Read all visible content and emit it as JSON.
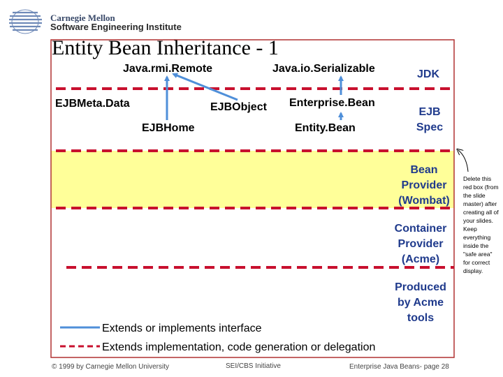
{
  "header": {
    "logo_line1": "Carnegie Mellon",
    "logo_line2": "Software Engineering Institute",
    "title": "Entity Bean Inheritance - 1"
  },
  "diagram": {
    "classes": {
      "remote": "Java.rmi.Remote",
      "serializable": "Java.io.Serializable",
      "ejb_meta_data": "EJBMeta.Data",
      "ejb_object": "EJBObject",
      "enterprise_bean": "Enterprise.Bean",
      "ejb_home": "EJBHome",
      "entity_bean": "Entity.Bean"
    },
    "layers": {
      "jdk": "JDK",
      "ejb_spec_1": "EJB",
      "ejb_spec_2": "Spec",
      "bean_provider_1": "Bean",
      "bean_provider_2": "Provider",
      "bean_provider_3": "(Wombat)",
      "container_provider_1": "Container",
      "container_provider_2": "Provider",
      "container_provider_3": "(Acme)",
      "produced_1": "Produced",
      "produced_2": "by Acme",
      "produced_3": "tools"
    },
    "colors": {
      "arrow_blue": "#4f8fd9",
      "dash_red": "#c8102e",
      "frame_red": "#b03030",
      "band_yellow": "#ffff99",
      "text_blue": "#1f3a8c"
    }
  },
  "legend": {
    "extends_interface": "Extends or implements interface",
    "extends_impl": "Extends implementation, code generation or delegation"
  },
  "side_note": "Delete this red box (from the slide master) after creating all of your slides. Keep everything inside the \"safe area\" for correct display.",
  "footer": {
    "copyright": "© 1999 by Carnegie Mellon University",
    "initiative": "SEI/CBS Initiative",
    "page": "Enterprise Java Beans- page 28"
  }
}
